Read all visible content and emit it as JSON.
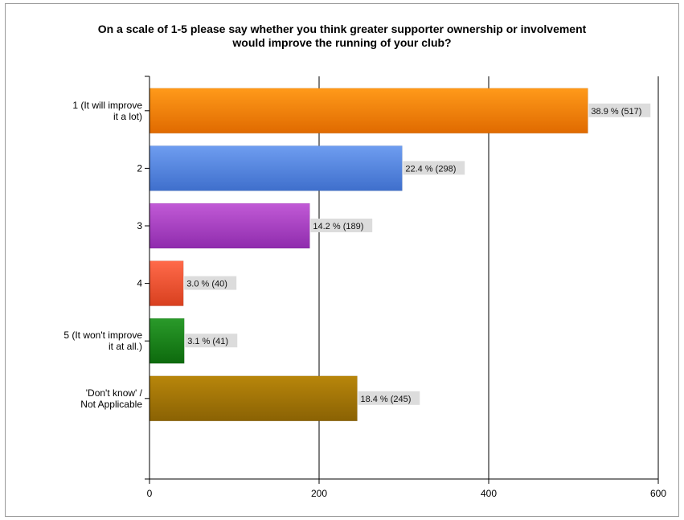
{
  "chart_data": {
    "type": "bar",
    "orientation": "horizontal",
    "title": [
      "On a scale of 1-5 please say whether you think greater supporter ownership or involvement",
      "would improve the running of your club?"
    ],
    "categories": [
      [
        "1 (It will improve",
        "it a lot)"
      ],
      [
        "2"
      ],
      [
        "3"
      ],
      [
        "4"
      ],
      [
        "5 (It won't improve",
        "it at all.)"
      ],
      [
        "'Don't know' /",
        "Not Applicable"
      ]
    ],
    "values": [
      517,
      298,
      189,
      40,
      41,
      245
    ],
    "data_labels": [
      "38.9 % (517)",
      "22.4 % (298)",
      "14.2 % (189)",
      "3.0 % (40)",
      "3.1 % (41)",
      "18.4 % (245)"
    ],
    "colors": [
      [
        "#ff9a1a",
        "#e06a00"
      ],
      [
        "#6e9df0",
        "#3f6fcc"
      ],
      [
        "#c15ad6",
        "#8f2cad"
      ],
      [
        "#ff6a4a",
        "#d8401f"
      ],
      [
        "#2a9a2a",
        "#0d6a0d"
      ],
      [
        "#b8860b",
        "#8a6204"
      ]
    ],
    "xlim": [
      0,
      600
    ],
    "xticks": [
      "0",
      "200",
      "400",
      "600"
    ],
    "grid": true,
    "legend": "none"
  }
}
